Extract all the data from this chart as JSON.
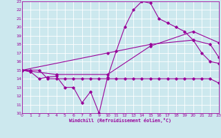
{
  "xlabel": "Windchill (Refroidissement éolien,°C)",
  "bg_color": "#cce8ee",
  "line_color": "#990099",
  "grid_color": "#ffffff",
  "xlim": [
    0,
    23
  ],
  "ylim": [
    10,
    23
  ],
  "xticks": [
    0,
    1,
    2,
    3,
    4,
    5,
    6,
    7,
    8,
    9,
    10,
    11,
    12,
    13,
    14,
    15,
    16,
    17,
    18,
    19,
    20,
    21,
    22,
    23
  ],
  "yticks": [
    10,
    11,
    12,
    13,
    14,
    15,
    16,
    17,
    18,
    19,
    20,
    21,
    22,
    23
  ],
  "series1_x": [
    0,
    1,
    2,
    3,
    4,
    5,
    6,
    7,
    8,
    9,
    10,
    11,
    12,
    13,
    14,
    15,
    16,
    17,
    18,
    19,
    20,
    21,
    22,
    23
  ],
  "series1_y": [
    15,
    15,
    15,
    14,
    14,
    14,
    14,
    14,
    14,
    14,
    14,
    14,
    14,
    14,
    14,
    14,
    14,
    14,
    14,
    14,
    14,
    14,
    14,
    13.5
  ],
  "series2_x": [
    0,
    1,
    2,
    3,
    4,
    5,
    6,
    7,
    8,
    9,
    10,
    11,
    12,
    13,
    14,
    15,
    16,
    17,
    18,
    19,
    20,
    21,
    22,
    23
  ],
  "series2_y": [
    15,
    14.8,
    14,
    14.2,
    14.3,
    13,
    13,
    11.2,
    12.5,
    10,
    14.2,
    17.2,
    20,
    22,
    23,
    22.8,
    21,
    20.5,
    20,
    19.5,
    18.5,
    17,
    16,
    15.8
  ],
  "series3_x": [
    0,
    4,
    10,
    15,
    20,
    23
  ],
  "series3_y": [
    15,
    14.5,
    14.5,
    17.8,
    19.5,
    18.2
  ],
  "series4_x": [
    0,
    10,
    15,
    20,
    22,
    23
  ],
  "series4_y": [
    15,
    17,
    18,
    18.5,
    18,
    16.5
  ]
}
